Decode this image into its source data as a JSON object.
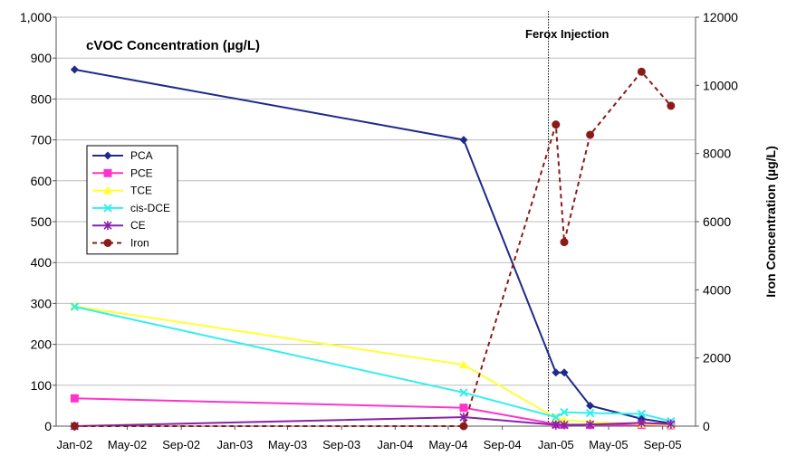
{
  "chart_data": {
    "type": "line",
    "title": "cVOC Concentration (µg/L)",
    "annotation": "Ferox Injection",
    "ylabel": "",
    "y2label": "Iron Concentration (µg/L)",
    "xlim": [
      "2001-11-20",
      "2005-11-15"
    ],
    "ylim": [
      0,
      1000
    ],
    "y2lim": [
      0,
      12000
    ],
    "yticks": [
      "0",
      "100",
      "200",
      "300",
      "400",
      "500",
      "600",
      "700",
      "800",
      "900",
      "1,000"
    ],
    "y2ticks": [
      "0",
      "2000",
      "4000",
      "6000",
      "8000",
      "10000",
      "12000"
    ],
    "xticks": [
      {
        "label": "Jan-02",
        "date": "2002-01-01"
      },
      {
        "label": "May-02",
        "date": "2002-05-01"
      },
      {
        "label": "Sep-02",
        "date": "2002-09-01"
      },
      {
        "label": "Jan-03",
        "date": "2003-01-01"
      },
      {
        "label": "May-03",
        "date": "2003-05-01"
      },
      {
        "label": "Sep-03",
        "date": "2003-09-01"
      },
      {
        "label": "Jan-04",
        "date": "2004-01-01"
      },
      {
        "label": "May-04",
        "date": "2004-05-01"
      },
      {
        "label": "Sep-04",
        "date": "2004-09-01"
      },
      {
        "label": "Jan-05",
        "date": "2005-01-01"
      },
      {
        "label": "May-05",
        "date": "2005-05-01"
      },
      {
        "label": "Sep-05",
        "date": "2005-09-01"
      }
    ],
    "annotation_date": "2004-12-15",
    "grid": true,
    "legend_position": "left",
    "series": [
      {
        "name": "PCA",
        "axis": "left",
        "color": "#1f2a8a",
        "marker": "diamond",
        "dash": false,
        "points": [
          [
            "2002-01-01",
            872
          ],
          [
            "2004-06-05",
            700
          ],
          [
            "2005-01-01",
            131
          ],
          [
            "2005-01-20",
            131
          ],
          [
            "2005-03-20",
            50
          ],
          [
            "2005-07-15",
            18
          ],
          [
            "2005-09-20",
            7
          ]
        ]
      },
      {
        "name": "PCE",
        "axis": "left",
        "color": "#ff33cc",
        "marker": "square",
        "dash": false,
        "points": [
          [
            "2002-01-01",
            68
          ],
          [
            "2004-06-05",
            45
          ],
          [
            "2005-01-01",
            5
          ],
          [
            "2005-01-20",
            4
          ],
          [
            "2005-03-20",
            3
          ],
          [
            "2005-07-15",
            3
          ],
          [
            "2005-09-20",
            2
          ]
        ]
      },
      {
        "name": "TCE",
        "axis": "left",
        "color": "#ffff33",
        "marker": "triangle",
        "dash": false,
        "points": [
          [
            "2002-01-01",
            293
          ],
          [
            "2004-06-05",
            150
          ],
          [
            "2005-01-01",
            20
          ],
          [
            "2005-01-20",
            15
          ],
          [
            "2005-03-20",
            10
          ],
          [
            "2005-07-15",
            5
          ],
          [
            "2005-09-20",
            3
          ]
        ]
      },
      {
        "name": "cis-DCE",
        "axis": "left",
        "color": "#33eeee",
        "marker": "x",
        "dash": false,
        "points": [
          [
            "2002-01-01",
            292
          ],
          [
            "2004-06-05",
            82
          ],
          [
            "2005-01-01",
            22
          ],
          [
            "2005-01-20",
            34
          ],
          [
            "2005-03-20",
            32
          ],
          [
            "2005-07-15",
            30
          ],
          [
            "2005-09-20",
            12
          ]
        ]
      },
      {
        "name": "CE",
        "axis": "left",
        "color": "#8822aa",
        "marker": "star",
        "dash": false,
        "points": [
          [
            "2002-01-01",
            0
          ],
          [
            "2004-06-05",
            22
          ],
          [
            "2005-01-01",
            3
          ],
          [
            "2005-01-20",
            3
          ],
          [
            "2005-03-20",
            4
          ],
          [
            "2005-07-15",
            8
          ],
          [
            "2005-09-20",
            5
          ]
        ]
      },
      {
        "name": "Iron",
        "axis": "right",
        "color": "#8b1a1a",
        "marker": "circle",
        "dash": true,
        "points": [
          [
            "2002-01-01",
            0
          ],
          [
            "2004-06-05",
            0
          ],
          [
            "2005-01-01",
            8850
          ],
          [
            "2005-01-20",
            5400
          ],
          [
            "2005-03-20",
            8550
          ],
          [
            "2005-07-15",
            10400
          ],
          [
            "2005-09-20",
            9400
          ]
        ]
      }
    ]
  }
}
